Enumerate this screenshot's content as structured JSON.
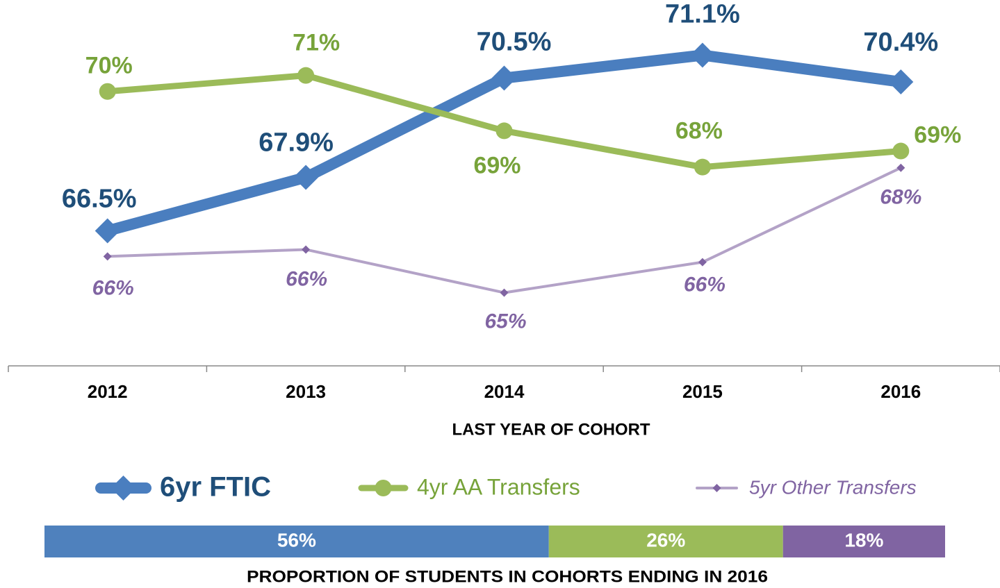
{
  "chart_data": [
    {
      "type": "line",
      "categories": [
        "2012",
        "2013",
        "2014",
        "2015",
        "2016"
      ],
      "x_label": "LAST YEAR OF COHORT",
      "ylim": [
        63,
        72
      ],
      "legend": "bottom",
      "series": [
        {
          "name": "6yr FTIC",
          "color": "#4a7ebf",
          "label_color": "#1f4e79",
          "values": [
            66.5,
            67.9,
            70.5,
            71.1,
            70.4
          ],
          "value_labels": [
            "66.5%",
            "67.9%",
            "70.5%",
            "71.1%",
            "70.4%"
          ]
        },
        {
          "name": "4yr AA Transfers",
          "color": "#9bbb59",
          "label_color": "#77a33a",
          "values": [
            70.15,
            70.57,
            69.12,
            68.17,
            68.59
          ],
          "value_labels": [
            "70%",
            "71%",
            "69%",
            "68%",
            "69%"
          ]
        },
        {
          "name": "5yr Other Transfers",
          "color": "#b3a2c7",
          "label_color": "#8064a2",
          "values": [
            65.83,
            66.01,
            64.88,
            65.68,
            68.15
          ],
          "value_labels": [
            "66%",
            "66%",
            "65%",
            "66%",
            "68%"
          ]
        }
      ]
    },
    {
      "type": "proportion-bar",
      "title": "PROPORTION OF STUDENTS IN COHORTS ENDING IN 2016",
      "xlim": [
        0,
        100
      ],
      "values": [
        56,
        26,
        18
      ],
      "value_labels": [
        "56%",
        "26%",
        "18%"
      ],
      "colors": [
        "#4f81bd",
        "#9bbb59",
        "#8064a2"
      ]
    }
  ]
}
